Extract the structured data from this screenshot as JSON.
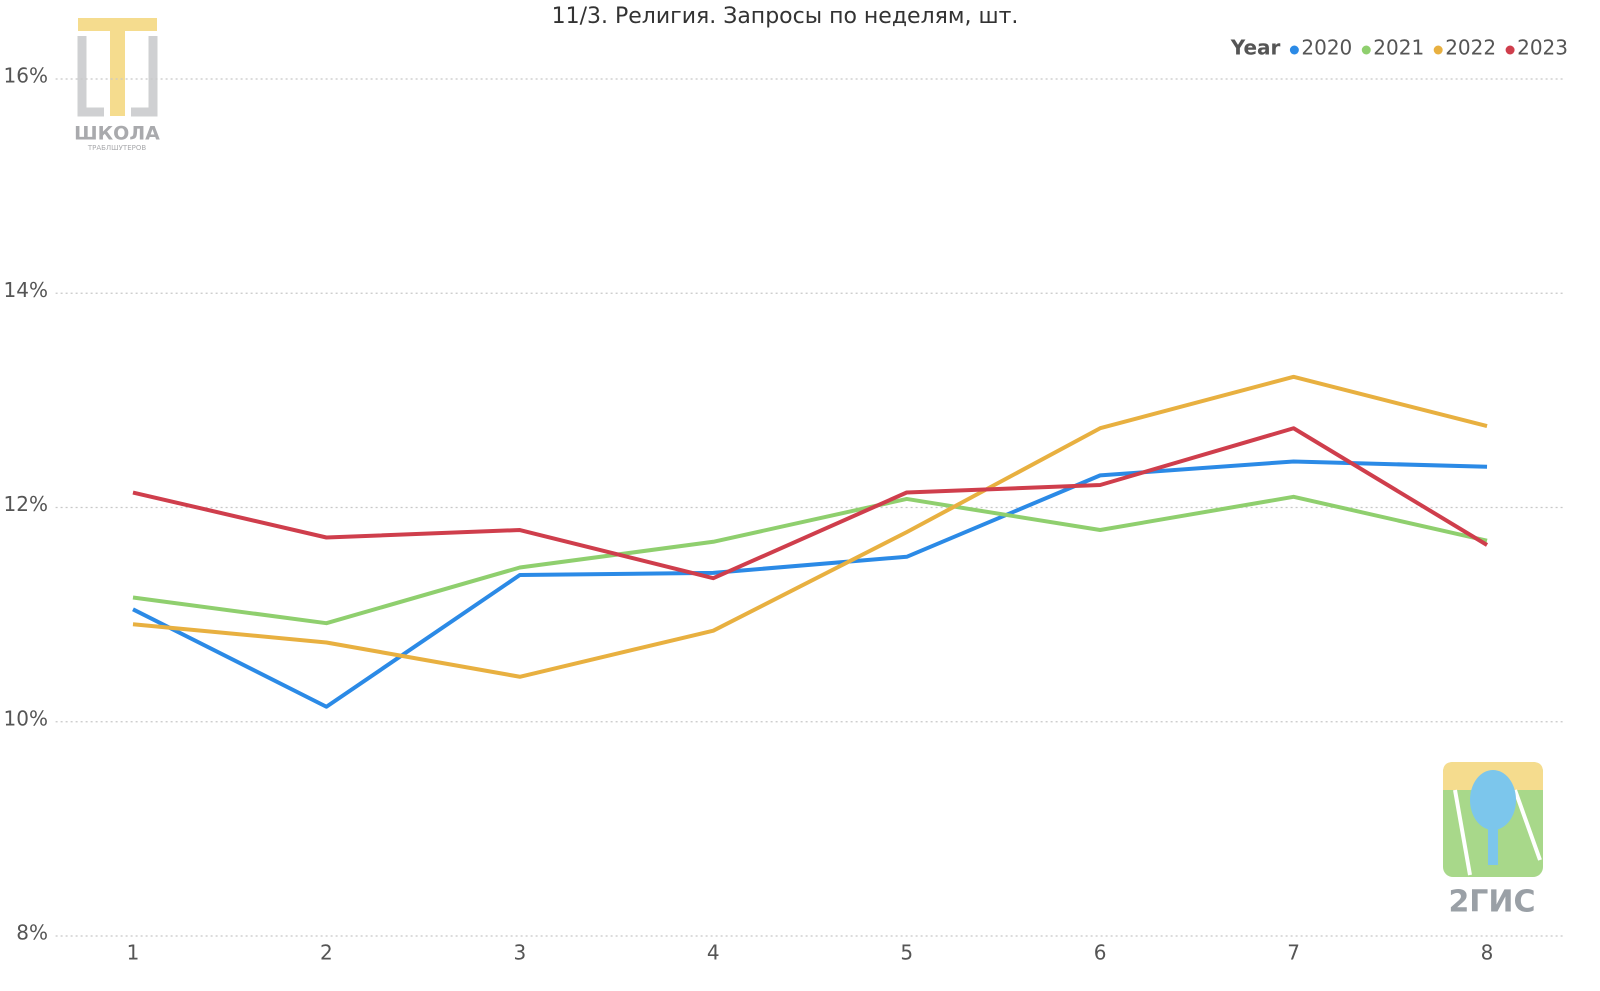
{
  "chart_data": {
    "type": "line",
    "title": "11/3. Религия. Запросы по неделям, шт.",
    "legend_title": "Year",
    "legend_position": "top-right",
    "x": [
      1,
      2,
      3,
      4,
      5,
      6,
      7,
      8
    ],
    "xlim": [
      0.6,
      8.4
    ],
    "xticks": [
      1,
      2,
      3,
      4,
      5,
      6,
      7,
      8
    ],
    "ylim": [
      8,
      16.2
    ],
    "yticks": [
      {
        "value": 8,
        "label": "8%"
      },
      {
        "value": 10,
        "label": "10%"
      },
      {
        "value": 12,
        "label": "12%"
      },
      {
        "value": 14,
        "label": "14%"
      },
      {
        "value": 16,
        "label": "16%"
      }
    ],
    "grid": true,
    "series": [
      {
        "name": "2020",
        "color": "#2b8ae6",
        "values": [
          11.05,
          10.14,
          11.37,
          11.39,
          11.54,
          12.3,
          12.43,
          12.38
        ]
      },
      {
        "name": "2021",
        "color": "#8fcf6e",
        "values": [
          11.16,
          10.92,
          11.44,
          11.68,
          12.08,
          11.79,
          12.1,
          11.69
        ]
      },
      {
        "name": "2022",
        "color": "#e8b040",
        "values": [
          10.91,
          10.74,
          10.42,
          10.85,
          11.77,
          12.74,
          13.22,
          12.76
        ]
      },
      {
        "name": "2023",
        "color": "#cf3e4c",
        "values": [
          12.14,
          11.72,
          11.79,
          11.34,
          12.14,
          12.21,
          12.74,
          11.65
        ]
      }
    ]
  },
  "logos": {
    "school": "ШКОЛА",
    "school_sub": "ТРАБЛШУТЕРОВ",
    "gis": "2ГИС"
  }
}
